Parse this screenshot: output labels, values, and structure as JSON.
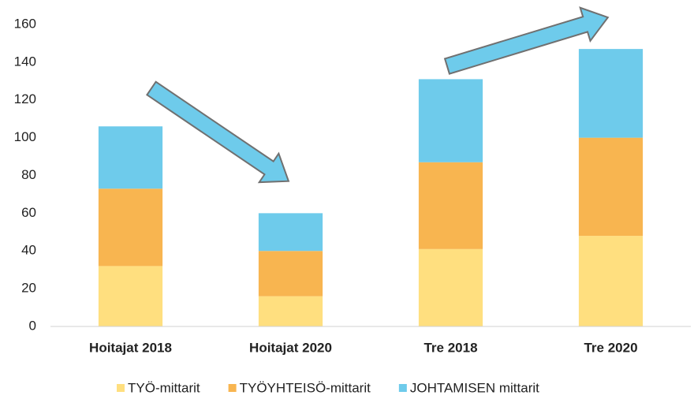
{
  "chart_data": {
    "type": "stacked_bar",
    "categories": [
      "Hoitajat 2018",
      "Hoitajat 2020",
      "Tre 2018",
      "Tre 2020"
    ],
    "series": [
      {
        "name": "TYÖ-mittarit",
        "color": "#ffdf7f",
        "values": [
          32,
          16,
          41,
          48
        ]
      },
      {
        "name": "TYÖYHTEISÖ-mittarit",
        "color": "#f8b550",
        "values": [
          41,
          24,
          46,
          52
        ]
      },
      {
        "name": "JOHTAMISEN mittarit",
        "color": "#6ecbeb",
        "values": [
          33,
          20,
          44,
          47
        ]
      }
    ],
    "ylim": [
      0,
      160
    ],
    "yticks": [
      0,
      20,
      40,
      60,
      80,
      100,
      120,
      140,
      160
    ],
    "grid": false,
    "legend": "bottom"
  }
}
